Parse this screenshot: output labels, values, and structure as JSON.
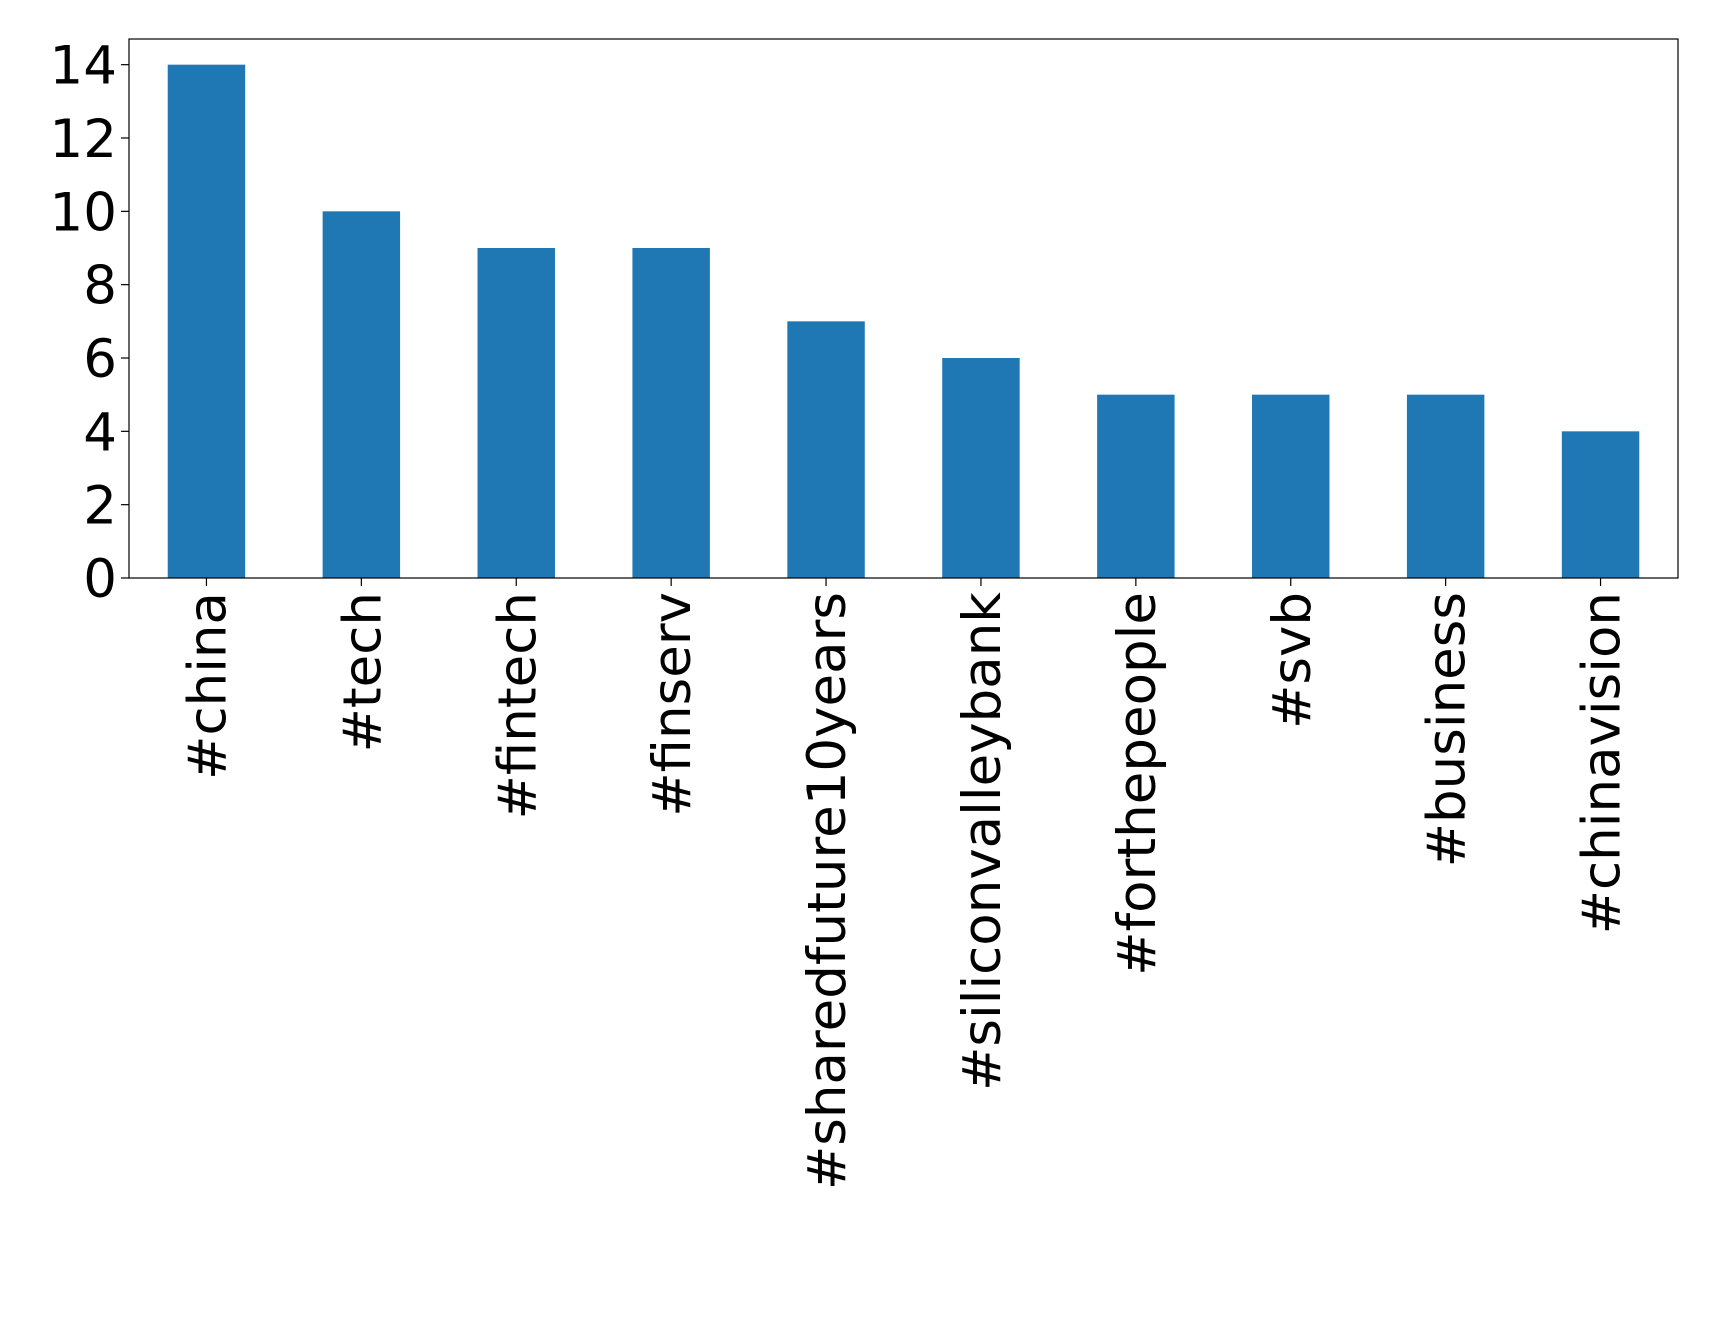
{
  "chart_data": {
    "type": "bar",
    "categories": [
      "#china",
      "#tech",
      "#fintech",
      "#finserv",
      "#sharedfuture10years",
      "#siliconvalleybank",
      "#forthepeople",
      "#svb",
      "#business",
      "#chinavision"
    ],
    "values": [
      14,
      10,
      9,
      9,
      7,
      6,
      5,
      5,
      5,
      4
    ],
    "color": "#1f77b4",
    "ylim": [
      0,
      14.7
    ],
    "yticks": [
      0,
      2,
      4,
      6,
      8,
      10,
      12,
      14
    ],
    "grid": false
  }
}
